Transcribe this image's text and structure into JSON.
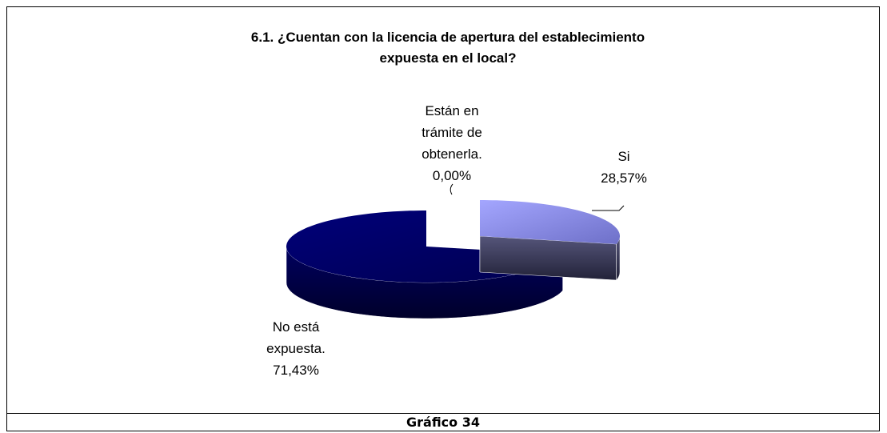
{
  "chart_data": {
    "type": "pie",
    "title": "6.1. ¿Cuentan con la licencia de apertura del establecimiento expuesta en el local?",
    "categories": [
      "Si",
      "No está expuesta.",
      "Están en trámite de obtenerla."
    ],
    "values": [
      28.57,
      71.43,
      0
    ],
    "value_labels": [
      "28,57%",
      "71,43%",
      "0,00%"
    ],
    "colors": [
      "#9a9cf6",
      "#000066",
      "#6666cc"
    ],
    "three_d": true
  },
  "caption": "Gráfico 34"
}
